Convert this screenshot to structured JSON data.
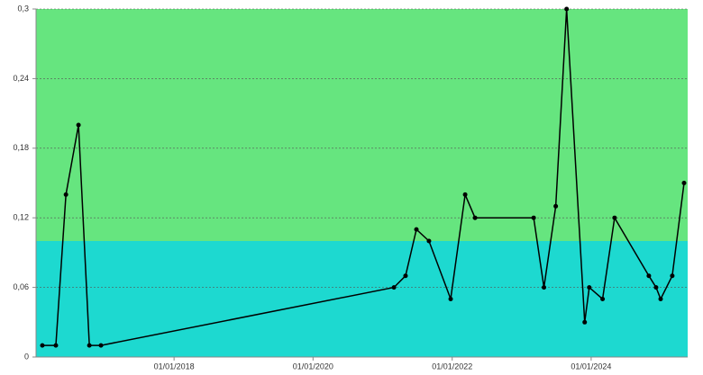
{
  "chart_data": {
    "type": "line",
    "x": [
      "2016-02-09",
      "2016-04-20",
      "2016-06-12",
      "2016-08-17",
      "2016-10-13",
      "2016-12-13",
      "2021-03-01",
      "2021-05-01",
      "2021-06-27",
      "2021-09-01",
      "2021-12-24",
      "2022-03-10",
      "2022-05-01",
      "2023-03-05",
      "2023-04-28",
      "2023-06-29",
      "2023-08-25",
      "2023-11-28",
      "2023-12-22",
      "2024-03-01",
      "2024-05-03",
      "2024-10-30",
      "2024-12-07",
      "2024-12-31",
      "2025-03-02",
      "2025-05-03"
    ],
    "series": [
      {
        "color": "#000000",
        "values": [
          0.01,
          0.01,
          0.14,
          0.2,
          0.01,
          0.01,
          0.06,
          0.07,
          0.11,
          0.1,
          0.05,
          0.14,
          0.12,
          0.12,
          0.06,
          0.13,
          0.3,
          0.03,
          0.06,
          0.05,
          0.12,
          0.07,
          0.06,
          0.05,
          0.07,
          0.15
        ]
      }
    ],
    "bands": [
      {
        "from": 0,
        "to": 0.1,
        "color": "#1dd9d0"
      },
      {
        "from": 0.1,
        "to": 0.3,
        "color": "#66e57f"
      }
    ],
    "xlim": [
      "2016-01-07",
      "2025-05-22"
    ],
    "xticks": [
      {
        "value": "2018-01-01",
        "label": "01/01/2018"
      },
      {
        "value": "2020-01-01",
        "label": "01/01/2020"
      },
      {
        "value": "2022-01-01",
        "label": "01/01/2022"
      },
      {
        "value": "2024-01-01",
        "label": "01/01/2024"
      }
    ],
    "ylim": [
      0,
      0.3
    ],
    "yticks": [
      0,
      {
        "value": 0.06,
        "label": "0,06"
      },
      {
        "value": 0.12,
        "label": "0,12"
      },
      {
        "value": 0.18,
        "label": "0,18"
      },
      {
        "value": 0.24,
        "label": "0,24"
      },
      {
        "value": 0.3,
        "label": "0,3"
      }
    ],
    "grid": true
  }
}
